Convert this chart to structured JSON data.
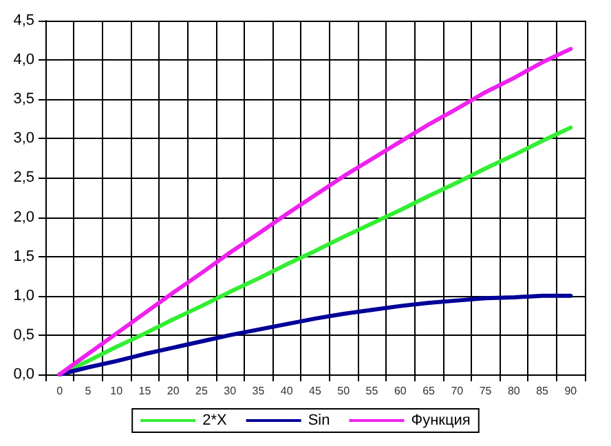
{
  "chart_data": {
    "type": "line",
    "categories": [
      "0",
      "5",
      "10",
      "15",
      "20",
      "25",
      "30",
      "35",
      "40",
      "45",
      "50",
      "55",
      "60",
      "65",
      "70",
      "75",
      "80",
      "85",
      "90"
    ],
    "series": [
      {
        "name": "2*X",
        "color": "#33ee33",
        "values": [
          0,
          0.17,
          0.35,
          0.52,
          0.7,
          0.87,
          1.05,
          1.22,
          1.4,
          1.57,
          1.75,
          1.92,
          2.09,
          2.27,
          2.44,
          2.62,
          2.79,
          2.97,
          3.14
        ]
      },
      {
        "name": "Sin",
        "color": "#000099",
        "values": [
          0,
          0.09,
          0.17,
          0.26,
          0.34,
          0.42,
          0.5,
          0.57,
          0.64,
          0.71,
          0.77,
          0.82,
          0.87,
          0.91,
          0.94,
          0.97,
          0.98,
          1.0,
          1.0
        ]
      },
      {
        "name": "Функция",
        "color": "#ee22ee",
        "values": [
          0,
          0.26,
          0.52,
          0.78,
          1.04,
          1.29,
          1.55,
          1.79,
          2.04,
          2.28,
          2.52,
          2.74,
          2.96,
          3.18,
          3.38,
          3.59,
          3.77,
          3.97,
          4.14
        ]
      }
    ],
    "ylim": [
      0,
      4.5
    ],
    "yticks": [
      {
        "value": 0,
        "label": "0,0"
      },
      {
        "value": 0.5,
        "label": "0,5"
      },
      {
        "value": 1,
        "label": "1,0"
      },
      {
        "value": 1.5,
        "label": "1,5"
      },
      {
        "value": 2,
        "label": "2,0"
      },
      {
        "value": 2.5,
        "label": "2,5"
      },
      {
        "value": 3,
        "label": "3,0"
      },
      {
        "value": 3.5,
        "label": "3,5"
      },
      {
        "value": 4,
        "label": "4,0"
      },
      {
        "value": 4.5,
        "label": "4,5"
      }
    ],
    "grid": true,
    "legend": "bottom",
    "marker": "none",
    "line_style": "solid"
  }
}
